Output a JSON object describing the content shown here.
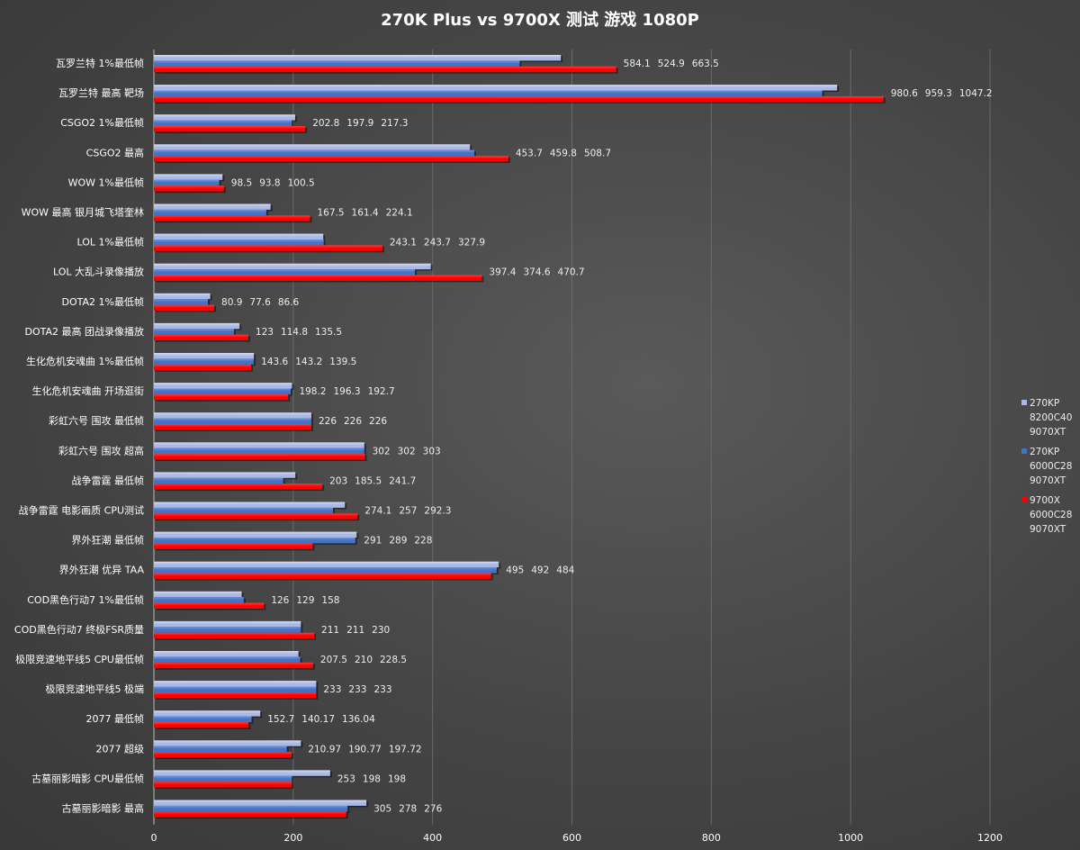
{
  "chart_data": {
    "type": "bar",
    "orientation": "horizontal",
    "title": "270K Plus vs 9700X 测试 游戏 1080P",
    "xlabel": "",
    "ylabel": "",
    "xlim": [
      0,
      1200
    ],
    "xticks": [
      0,
      200,
      400,
      600,
      800,
      1000,
      1200
    ],
    "grid": "vertical",
    "legend_position": "right",
    "categories": [
      "瓦罗兰特 1%最低帧",
      "瓦罗兰特 最高 靶场",
      "CSGO2 1%最低帧",
      "CSGO2 最高",
      "WOW 1%最低帧",
      "WOW 最高 银月城飞塔奎林",
      "LOL 1%最低帧",
      "LOL 大乱斗录像播放",
      "DOTA2 1%最低帧",
      "DOTA2 最高 团战录像播放",
      "生化危机安魂曲 1%最低帧",
      "生化危机安魂曲 开场逛街",
      "彩虹六号 围攻 最低帧",
      "彩虹六号 围攻 超高",
      "战争雷霆 最低帧",
      "战争雷霆 电影画质 CPU测试",
      "界外狂潮 最低帧",
      "界外狂潮 优异 TAA",
      "COD黑色行动7 1%最低帧",
      "COD黑色行动7 终极FSR质量",
      "极限竞速地平线5 CPU最低帧",
      "极限竞速地平线5 极端",
      "2077 最低帧",
      "2077 超级",
      "古墓丽影暗影 CPU最低帧",
      "古墓丽影暗影 最高"
    ],
    "value_labels": [
      [
        "584.1",
        "980.6",
        "202.8",
        "453.7",
        "98.5",
        "167.5",
        "243.1",
        "397.4",
        "80.9",
        "123",
        "143.6",
        "198.2",
        "226",
        "302",
        "203",
        "274.1",
        "291",
        "495",
        "126",
        "211",
        "207.5",
        "233",
        "152.7",
        "210.97",
        "253",
        "305"
      ],
      [
        "524.9",
        "959.3",
        "197.9",
        "459.8",
        "93.8",
        "161.4",
        "243.7",
        "374.6",
        "77.6",
        "114.8",
        "143.2",
        "196.3",
        "226",
        "302",
        "185.5",
        "257",
        "289",
        "492",
        "129",
        "211",
        "210",
        "233",
        "140.17",
        "190.77",
        "198",
        "278"
      ],
      [
        "663.5",
        "1047.2",
        "217.3",
        "508.7",
        "100.5",
        "224.1",
        "327.9",
        "470.7",
        "86.6",
        "135.5",
        "139.5",
        "192.7",
        "226",
        "303",
        "241.7",
        "292.3",
        "228",
        "484",
        "158",
        "230",
        "228.5",
        "233",
        "136.04",
        "197.72",
        "198",
        "276"
      ]
    ],
    "series": [
      {
        "name": [
          "270KP",
          "8200C40",
          "9070XT"
        ],
        "color": "#a9b8e6",
        "values": [
          584.1,
          980.6,
          202.8,
          453.7,
          98.5,
          167.5,
          243.1,
          397.4,
          80.9,
          123,
          143.6,
          198.2,
          226,
          302,
          203,
          274.1,
          291,
          495,
          126,
          211,
          207.5,
          233,
          152.7,
          210.97,
          253,
          305
        ]
      },
      {
        "name": [
          "270KP",
          "6000C28",
          "9070XT"
        ],
        "color": "#4472c4",
        "values": [
          524.9,
          959.3,
          197.9,
          459.8,
          93.8,
          161.4,
          243.7,
          374.6,
          77.6,
          114.8,
          143.2,
          196.3,
          226,
          302,
          185.5,
          257,
          289,
          492,
          129,
          211,
          210,
          233,
          140.17,
          190.77,
          198,
          278
        ]
      },
      {
        "name": [
          "9700X",
          "6000C28",
          "9070XT"
        ],
        "color": "#ff0000",
        "values": [
          663.5,
          1047.2,
          217.3,
          508.7,
          100.5,
          224.1,
          327.9,
          470.7,
          86.6,
          135.5,
          139.5,
          192.7,
          226,
          303,
          241.7,
          292.3,
          228,
          484,
          158,
          230,
          228.5,
          233,
          136.04,
          197.72,
          198,
          276
        ]
      }
    ]
  }
}
